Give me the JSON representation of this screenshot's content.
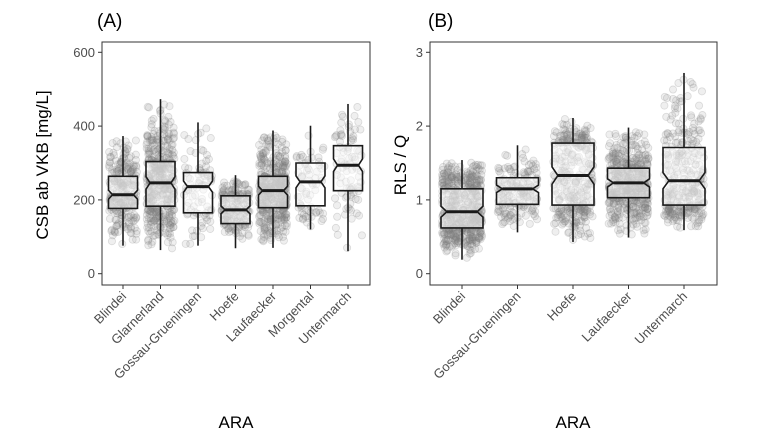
{
  "chart_data": [
    {
      "type": "boxplot",
      "panel_label": "(A)",
      "xlabel": "ARA",
      "ylabel": "CSB ab VKB [mg/L]",
      "ylim": [
        -25,
        620
      ],
      "yticks": [
        0,
        200,
        400,
        600
      ],
      "grid": false,
      "notched": true,
      "jittered_points": true,
      "categories": [
        "Blindei",
        "Glarnerland",
        "Gossau-Grueningen",
        "Hoefe",
        "Laufaecker",
        "Morgental",
        "Untermarch"
      ],
      "boxes": [
        {
          "low": 76,
          "q1": 177,
          "median": 214,
          "q3": 264,
          "high": 373
        },
        {
          "low": 64,
          "q1": 183,
          "median": 246,
          "q3": 304,
          "high": 473
        },
        {
          "low": 76,
          "q1": 165,
          "median": 236,
          "q3": 274,
          "high": 410
        },
        {
          "low": 69,
          "q1": 136,
          "median": 173,
          "q3": 211,
          "high": 267
        },
        {
          "low": 70,
          "q1": 179,
          "median": 225,
          "q3": 264,
          "high": 388
        },
        {
          "low": 120,
          "q1": 184,
          "median": 249,
          "q3": 300,
          "high": 401
        },
        {
          "low": 61,
          "q1": 225,
          "median": 294,
          "q3": 347,
          "high": 460
        }
      ]
    },
    {
      "type": "boxplot",
      "panel_label": "(B)",
      "xlabel": "ARA",
      "ylabel": "RLS / Q",
      "ylim": [
        -0.12,
        3.1
      ],
      "yticks": [
        0,
        1,
        2,
        3
      ],
      "grid": false,
      "notched": true,
      "jittered_points": true,
      "categories": [
        "Blindei",
        "Gossau-Grueningen",
        "Hoefe",
        "Laufaecker",
        "Untermarch"
      ],
      "boxes": [
        {
          "low": 0.19,
          "q1": 0.62,
          "median": 0.84,
          "q3": 1.15,
          "high": 1.54
        },
        {
          "low": 0.56,
          "q1": 0.94,
          "median": 1.15,
          "q3": 1.3,
          "high": 1.74
        },
        {
          "low": 0.43,
          "q1": 0.93,
          "median": 1.33,
          "q3": 1.77,
          "high": 2.11
        },
        {
          "low": 0.49,
          "q1": 1.03,
          "median": 1.23,
          "q3": 1.43,
          "high": 1.98
        },
        {
          "low": 0.59,
          "q1": 0.93,
          "median": 1.26,
          "q3": 1.71,
          "high": 2.72
        }
      ]
    }
  ],
  "colors": {
    "point": "#7f7f7f",
    "box": "#1a1a1a",
    "frame": "#333333"
  }
}
